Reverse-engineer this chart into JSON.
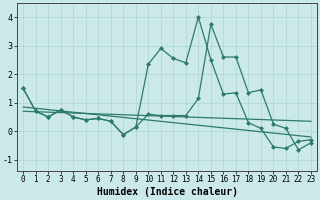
{
  "x": [
    0,
    1,
    2,
    3,
    4,
    5,
    6,
    7,
    8,
    9,
    10,
    11,
    12,
    13,
    14,
    15,
    16,
    17,
    18,
    19,
    20,
    21,
    22,
    23
  ],
  "line1_y": [
    1.5,
    0.7,
    0.5,
    0.75,
    0.5,
    0.4,
    0.45,
    0.35,
    -0.12,
    0.15,
    0.6,
    0.55,
    0.55,
    0.55,
    1.15,
    3.75,
    2.6,
    2.6,
    1.35,
    1.45,
    0.25,
    0.1,
    -0.65,
    -0.4
  ],
  "line2_y": [
    1.5,
    0.7,
    0.5,
    0.75,
    0.5,
    0.4,
    0.45,
    0.35,
    -0.12,
    0.15,
    2.35,
    2.9,
    2.55,
    2.4,
    4.0,
    2.5,
    1.3,
    1.35,
    0.3,
    0.1,
    -0.55,
    -0.6,
    -0.35,
    -0.3
  ],
  "trend1_x": [
    0,
    23
  ],
  "trend1_y": [
    0.7,
    0.35
  ],
  "trend2_x": [
    0,
    23
  ],
  "trend2_y": [
    0.85,
    -0.2
  ],
  "background_color": "#cce9e9",
  "grid_color": "#aed4d4",
  "line_color": "#2d7a6c",
  "xlabel": "Humidex (Indice chaleur)",
  "ytick_labels": [
    "-1",
    "0",
    "1",
    "2",
    "3",
    "4"
  ],
  "ytick_vals": [
    -1,
    0,
    1,
    2,
    3,
    4
  ],
  "ylim": [
    -1.4,
    4.5
  ],
  "xlim": [
    -0.5,
    23.5
  ]
}
